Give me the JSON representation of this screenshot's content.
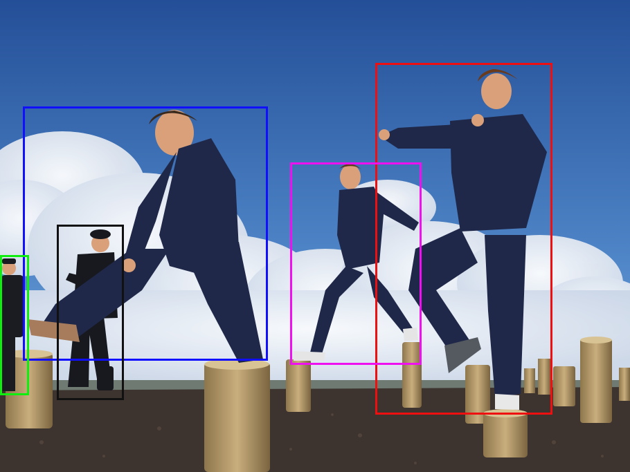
{
  "palette": {
    "sky_top": "#2a5aa6",
    "sky_bottom": "#6ea2d8",
    "cloud": "#e9eef5",
    "ground": "#3c332e",
    "post": "#b59a6a",
    "coverall": "#1e2748",
    "uniform": "#1a1c22",
    "skin": "#d9a07a"
  },
  "detections": [
    {
      "id": "person-large-left",
      "label": "person",
      "color": "#1010ff"
    },
    {
      "id": "person-woman-right",
      "label": "person",
      "color": "#ee1010"
    },
    {
      "id": "person-middle",
      "label": "person",
      "color": "#ee10ee"
    },
    {
      "id": "person-officer",
      "label": "person",
      "color": "#111111"
    },
    {
      "id": "person-edge-left",
      "label": "person",
      "color": "#10ee10"
    }
  ]
}
